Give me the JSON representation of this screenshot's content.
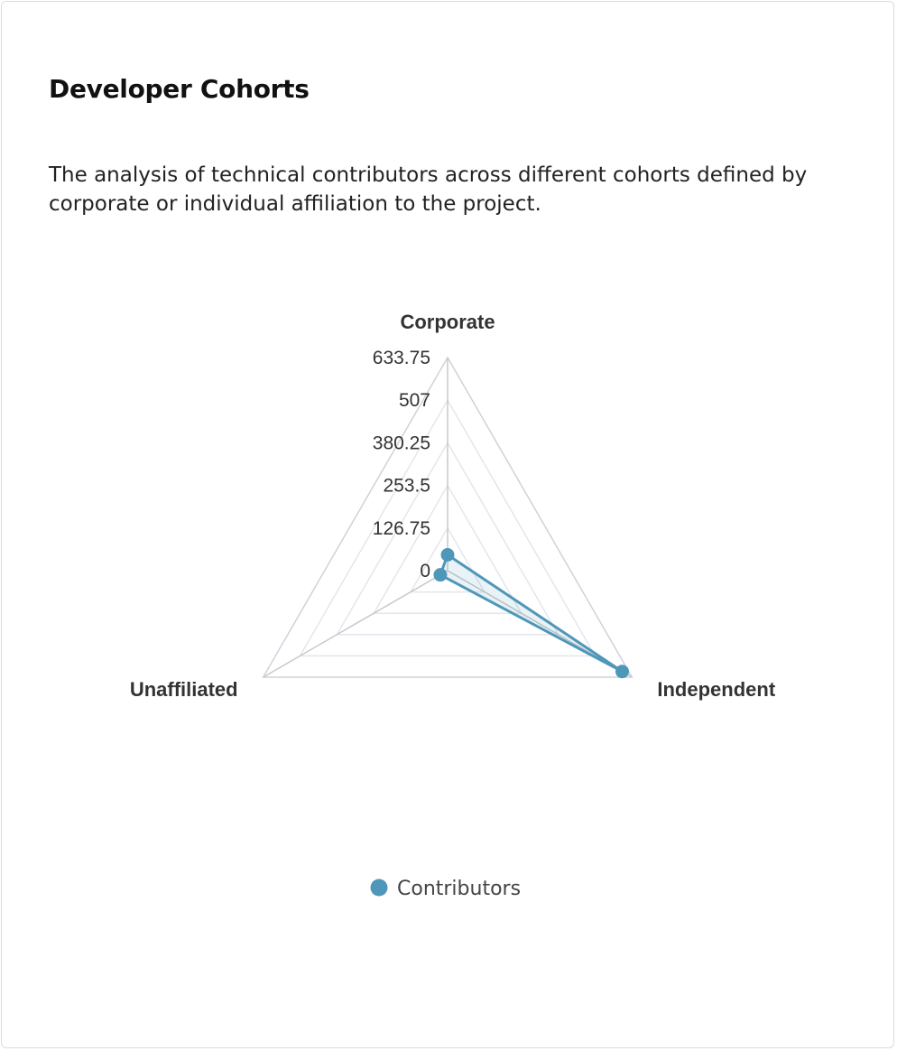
{
  "card": {
    "title": "Developer Cohorts",
    "description": "The analysis of technical contributors across different cohorts defined by corporate or individual affiliation to the project."
  },
  "chart_data": {
    "type": "radar",
    "axes": [
      "Corporate",
      "Independent",
      "Unaffiliated"
    ],
    "ticks": [
      "0",
      "126.75",
      "253.5",
      "380.25",
      "507",
      "633.75"
    ],
    "max": 633.75,
    "grid_levels": 5,
    "legend_position": "bottom-center",
    "series": [
      {
        "name": "Contributors",
        "values": [
          47,
          600,
          25
        ],
        "color": "#4e97b8"
      }
    ]
  }
}
